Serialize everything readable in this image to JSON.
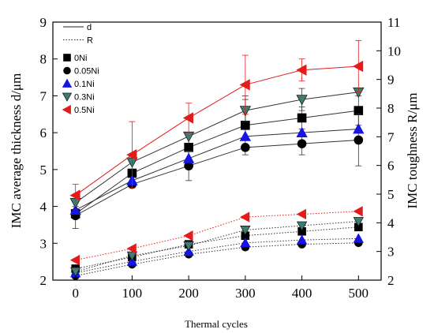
{
  "chart_data": {
    "type": "line",
    "xlabel": "Thermal cycles",
    "ylabel_left": "IMC average thickness d/μm",
    "ylabel_right": "IMC toughness R/μm",
    "x": [
      0,
      100,
      200,
      300,
      400,
      500
    ],
    "xlim": [
      -40,
      540
    ],
    "ylim_left": [
      2,
      9
    ],
    "ylim_right": [
      2,
      11
    ],
    "xticks": [
      "0",
      "100",
      "200",
      "300",
      "400",
      "500"
    ],
    "yticks_left": [
      "2",
      "3",
      "4",
      "5",
      "6",
      "7",
      "8",
      "9"
    ],
    "yticks_right": [
      "2",
      "3",
      "4",
      "5",
      "6",
      "7",
      "8",
      "9",
      "10",
      "11"
    ],
    "legend": {
      "position": "top-left",
      "line_entries": [
        {
          "label": "d",
          "style": "solid"
        },
        {
          "label": "R",
          "style": "dotted"
        }
      ],
      "marker_entries": [
        {
          "label": "0Ni",
          "marker": "square",
          "color": "#000000"
        },
        {
          "label": "0.05Ni",
          "marker": "circle",
          "color": "#000000"
        },
        {
          "label": "0.1Ni",
          "marker": "triangle-up",
          "color": "#1515e6"
        },
        {
          "label": "0.3Ni",
          "marker": "triangle-down",
          "color": "#3e7d74"
        },
        {
          "label": "0.5Ni",
          "marker": "triangle-left",
          "color": "#e31b1b"
        }
      ]
    },
    "series": [
      {
        "name": "0Ni",
        "kind": "d",
        "values": [
          3.8,
          4.9,
          5.6,
          6.2,
          6.4,
          6.6
        ],
        "err": [
          0.4,
          0.3,
          0.3,
          0.8,
          0.3,
          0.4
        ]
      },
      {
        "name": "0.05Ni",
        "kind": "d",
        "values": [
          3.75,
          4.6,
          5.1,
          5.6,
          5.7,
          5.8
        ],
        "err": [
          0,
          0,
          0.4,
          0,
          0.3,
          0.7
        ]
      },
      {
        "name": "0.1Ni",
        "kind": "d",
        "values": [
          3.9,
          4.7,
          5.3,
          5.9,
          6.0,
          6.1
        ],
        "err": [
          0,
          0,
          0,
          0,
          0,
          0
        ]
      },
      {
        "name": "0.3Ni",
        "kind": "d",
        "values": [
          4.1,
          5.2,
          5.9,
          6.6,
          6.9,
          7.1
        ],
        "err": [
          0,
          0,
          0,
          0.3,
          0.3,
          0
        ]
      },
      {
        "name": "0.5Ni",
        "kind": "d",
        "values": [
          4.3,
          5.4,
          6.4,
          7.3,
          7.7,
          7.8
        ],
        "err": [
          0.3,
          0.9,
          0.4,
          0.8,
          0.3,
          0.7
        ]
      },
      {
        "name": "0Ni",
        "kind": "R",
        "values": [
          2.4,
          2.8,
          3.25,
          3.55,
          3.7,
          3.85
        ],
        "err": [
          0,
          0,
          0,
          0,
          0,
          0
        ]
      },
      {
        "name": "0.05Ni",
        "kind": "R",
        "values": [
          2.15,
          2.55,
          2.9,
          3.15,
          3.25,
          3.3
        ],
        "err": [
          0,
          0,
          0,
          0,
          0,
          0
        ]
      },
      {
        "name": "0.1Ni",
        "kind": "R",
        "values": [
          2.25,
          2.65,
          3.0,
          3.3,
          3.4,
          3.45
        ],
        "err": [
          0,
          0,
          0,
          0,
          0,
          0
        ]
      },
      {
        "name": "0.3Ni",
        "kind": "R",
        "values": [
          2.3,
          2.85,
          3.2,
          3.75,
          3.9,
          4.05
        ],
        "err": [
          0,
          0,
          0,
          0,
          0,
          0
        ]
      },
      {
        "name": "0.5Ni",
        "kind": "R",
        "values": [
          2.7,
          3.1,
          3.55,
          4.2,
          4.3,
          4.4
        ],
        "err": [
          0,
          0,
          0,
          0,
          0,
          0
        ]
      }
    ],
    "grid": false
  }
}
